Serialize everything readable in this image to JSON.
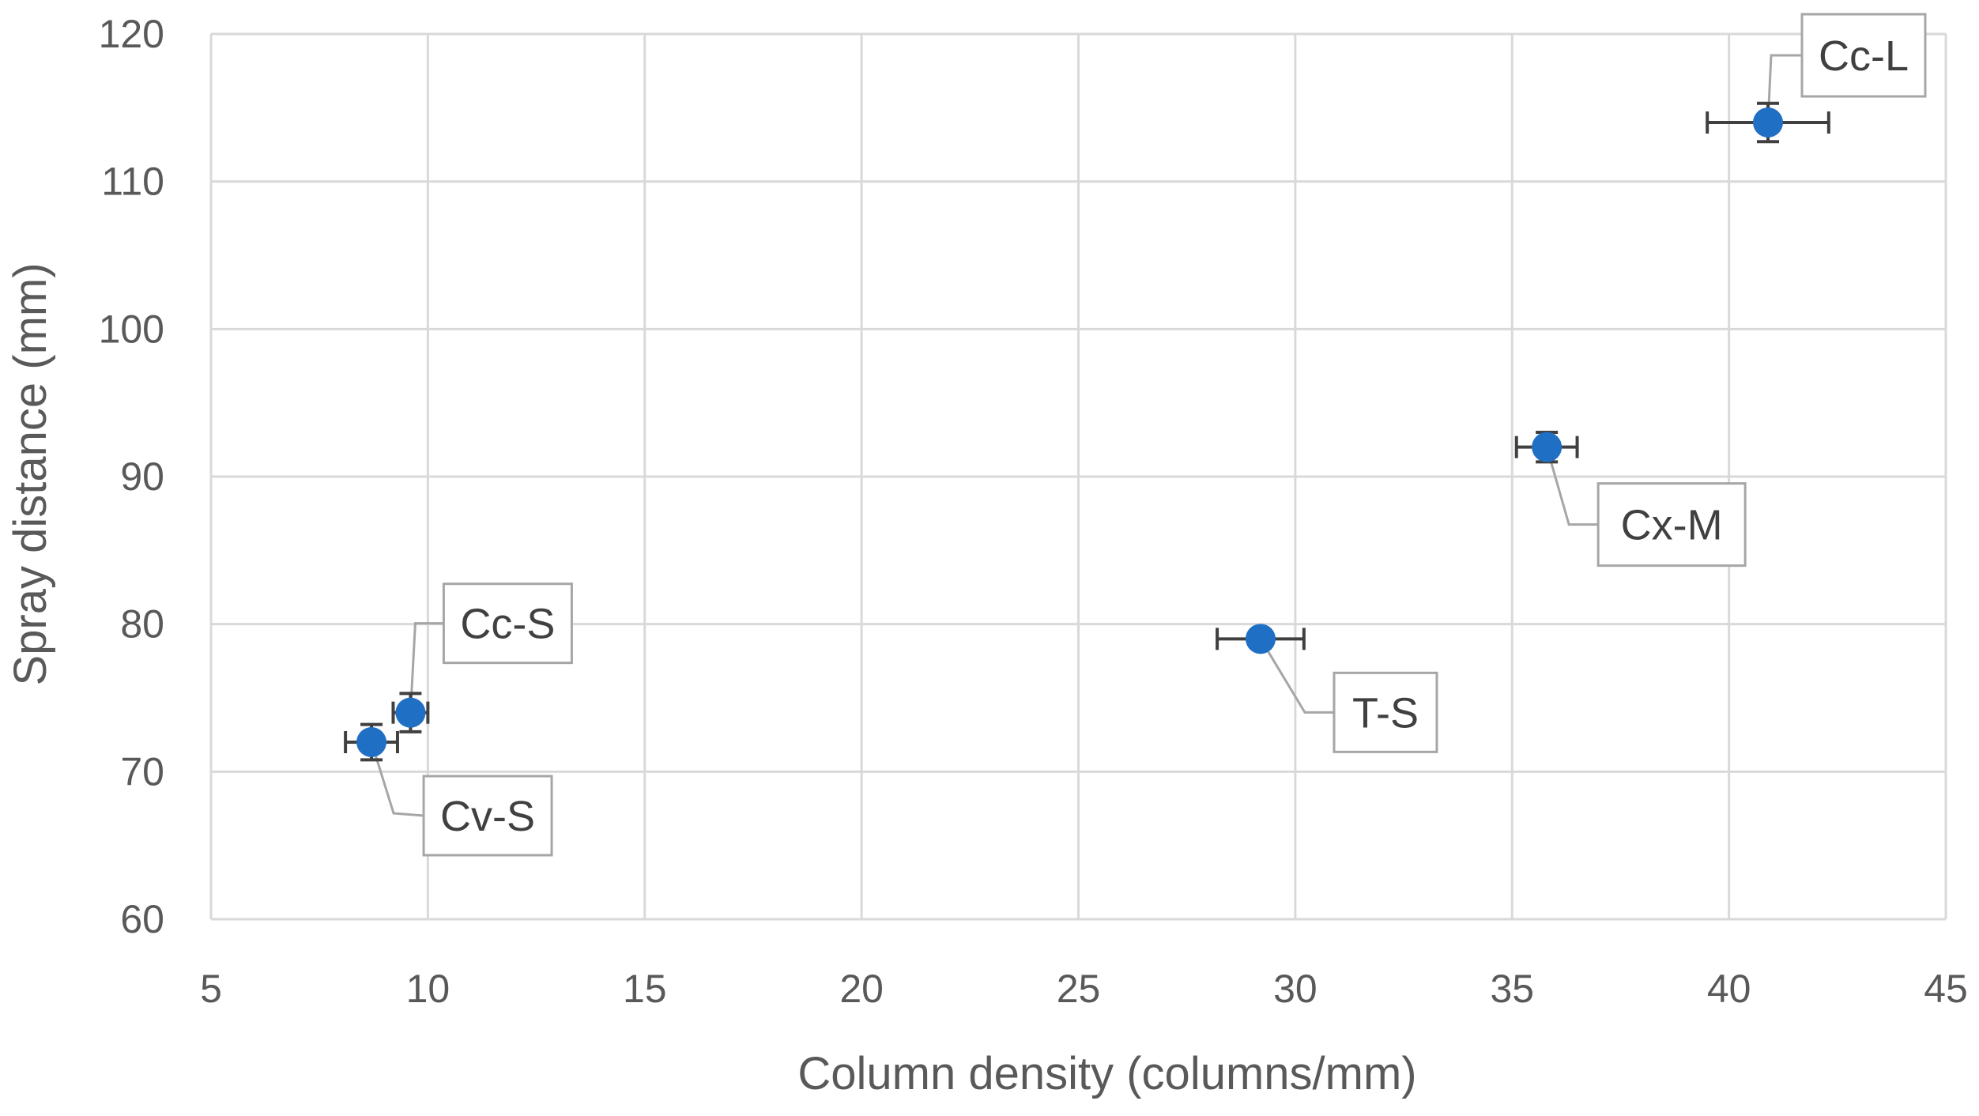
{
  "chart_data": {
    "type": "scatter",
    "xlabel": "Column density (columns/mm)",
    "ylabel": "Spray distance (mm)",
    "xlim": [
      5,
      45
    ],
    "ylim": [
      60,
      120
    ],
    "x_ticks": [
      5,
      10,
      15,
      20,
      25,
      30,
      35,
      40,
      45
    ],
    "y_ticks": [
      60,
      70,
      80,
      90,
      100,
      110,
      120
    ],
    "grid": true,
    "legend": "none",
    "marker_color": "#1f6fc5",
    "error_bar_color": "#404040",
    "points": [
      {
        "label": "Cv-S",
        "x": 8.7,
        "y": 72,
        "xerr": 0.6,
        "yerr": 1.2
      },
      {
        "label": "Cc-S",
        "x": 9.6,
        "y": 74,
        "xerr": 0.4,
        "yerr": 1.3
      },
      {
        "label": "T-S",
        "x": 29.2,
        "y": 79,
        "xerr": 1.0,
        "yerr": 0.6
      },
      {
        "label": "Cx-M",
        "x": 35.8,
        "y": 92,
        "xerr": 0.7,
        "yerr": 1.0
      },
      {
        "label": "Cc-L",
        "x": 40.9,
        "y": 114,
        "xerr": 1.4,
        "yerr": 1.3
      }
    ]
  }
}
